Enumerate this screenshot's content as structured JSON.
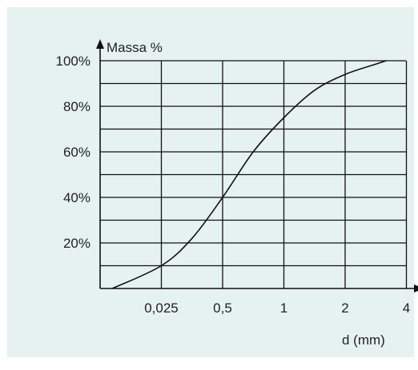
{
  "chart_data": {
    "type": "line",
    "title": "",
    "ylabel": "Massa %",
    "xlabel": "d (mm)",
    "x_scale": "categorical-log",
    "x_ticks": [
      "0,025",
      "0,5",
      "1",
      "2",
      "4"
    ],
    "y_ticks": [
      "20%",
      "40%",
      "60%",
      "80%",
      "100%"
    ],
    "ylim": [
      0,
      100
    ],
    "y_unit": "%",
    "grid": true,
    "series": [
      {
        "x_tick_index": [
          -0.8,
          0,
          0.5,
          1,
          1.5,
          2,
          2.5,
          3,
          3.5,
          3.67
        ],
        "y": [
          0,
          10,
          22,
          40,
          60,
          75,
          87,
          94,
          98.5,
          100
        ]
      }
    ]
  }
}
